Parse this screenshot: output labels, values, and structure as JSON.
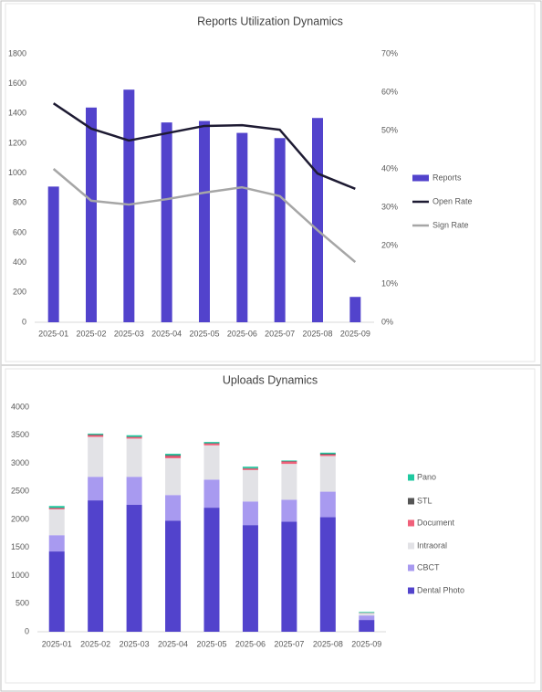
{
  "chart_data": [
    {
      "type": "bar",
      "title": "Reports Utilization Dynamics",
      "categories": [
        "2025-01",
        "2025-02",
        "2025-03",
        "2025-04",
        "2025-05",
        "2025-06",
        "2025-07",
        "2025-08",
        "2025-09"
      ],
      "series": [
        {
          "name": "Reports",
          "color": "#5243cc",
          "values": [
            910,
            1440,
            1560,
            1340,
            1350,
            1270,
            1235,
            1370,
            170
          ]
        },
        {
          "name": "Open Rate",
          "type": "line",
          "axis": "y2",
          "color": "#1e1b33",
          "values": [
            57.1,
            50.5,
            47.4,
            49.3,
            51.2,
            51.4,
            50.2,
            38.8,
            34.8
          ]
        },
        {
          "name": "Sign Rate",
          "type": "line",
          "axis": "y2",
          "color": "#a6a6a6",
          "values": [
            40,
            31.7,
            30.7,
            32.1,
            33.8,
            35.2,
            32.9,
            24,
            15.7
          ]
        }
      ],
      "ylim": [
        0,
        1800
      ],
      "yticks": [
        0,
        200,
        400,
        600,
        800,
        1000,
        1200,
        1400,
        1600,
        1800
      ],
      "y2lim": [
        0,
        70
      ],
      "y2ticks": [
        {
          "value": 0,
          "label": "0%"
        },
        {
          "value": 10,
          "label": "10%"
        },
        {
          "value": 20,
          "label": "20%"
        },
        {
          "value": 30,
          "label": "30%"
        },
        {
          "value": 40,
          "label": "40%"
        },
        {
          "value": 50,
          "label": "50%"
        },
        {
          "value": 60,
          "label": "60%"
        },
        {
          "value": 70,
          "label": "70%"
        }
      ],
      "legend": "right"
    },
    {
      "type": "bar",
      "stacked": true,
      "title": "Uploads Dynamics",
      "categories": [
        "2025-01",
        "2025-02",
        "2025-03",
        "2025-04",
        "2025-05",
        "2025-06",
        "2025-07",
        "2025-08",
        "2025-09"
      ],
      "series": [
        {
          "name": "Dental Photo",
          "color": "#5243cc",
          "values": [
            1430,
            2340,
            2260,
            1980,
            2210,
            1900,
            1960,
            2040,
            210
          ]
        },
        {
          "name": "CBCT",
          "color": "#a89af0",
          "values": [
            290,
            420,
            500,
            455,
            500,
            420,
            390,
            455,
            80
          ]
        },
        {
          "name": "Intraoral",
          "color": "#e2e2e6",
          "values": [
            460,
            710,
            680,
            655,
            610,
            560,
            640,
            635,
            40
          ]
        },
        {
          "name": "Document",
          "color": "#f0607a",
          "values": [
            20,
            30,
            25,
            40,
            30,
            25,
            40,
            25,
            5
          ]
        },
        {
          "name": "STL",
          "color": "#555555",
          "values": [
            10,
            15,
            10,
            15,
            10,
            10,
            10,
            15,
            2
          ]
        },
        {
          "name": "Pano",
          "color": "#20c9a0",
          "values": [
            30,
            15,
            25,
            25,
            20,
            25,
            10,
            20,
            15
          ]
        }
      ],
      "ylim": [
        0,
        4000
      ],
      "yticks": [
        0,
        500,
        1000,
        1500,
        2000,
        2500,
        3000,
        3500,
        4000
      ],
      "legend": "right"
    }
  ]
}
